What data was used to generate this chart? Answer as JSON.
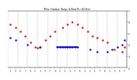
{
  "title": "Milw. Outdoor Temp. & Dew Pt. (24 Hrs)",
  "background_color": "#ffffff",
  "plot_bg_color": "#ffffff",
  "ylim": [
    20,
    70
  ],
  "xlim": [
    0,
    48
  ],
  "ytick_labels": [
    "2",
    "4",
    "6",
    "8"
  ],
  "temp_color": "#dd0000",
  "dewpt_color": "#0000cc",
  "marker_color": "#000000",
  "temp_x": [
    1,
    3,
    5,
    7,
    9,
    11,
    12,
    13,
    15,
    17,
    19,
    22,
    24,
    26,
    28,
    30,
    32,
    34,
    36,
    38,
    40,
    43,
    46,
    47
  ],
  "temp_y": [
    58,
    55,
    52,
    48,
    42,
    38,
    37,
    38,
    44,
    48,
    52,
    55,
    58,
    60,
    58,
    55,
    52,
    48,
    46,
    44,
    42,
    36,
    34,
    38
  ],
  "dew_x": [
    1,
    3,
    8,
    13,
    20,
    21,
    22,
    23,
    24,
    25,
    26,
    27,
    28,
    33,
    36,
    40,
    42,
    44,
    46,
    47
  ],
  "dew_y": [
    46,
    44,
    40,
    38,
    38,
    38,
    38,
    38,
    38,
    38,
    38,
    38,
    38,
    36,
    34,
    34,
    36,
    38,
    40,
    44
  ],
  "vgrid_x": [
    0,
    4,
    8,
    12,
    16,
    20,
    24,
    28,
    32,
    36,
    40,
    44,
    48
  ],
  "xtick_vals": [
    1,
    3,
    5,
    7,
    9,
    11,
    13,
    15,
    17,
    19,
    21,
    23,
    25,
    27,
    29,
    31,
    33,
    35,
    37,
    39,
    41,
    43,
    45,
    47
  ],
  "xtick_labels": [
    "1",
    "3",
    "5",
    "7",
    "9",
    "1",
    "3",
    "5",
    "7",
    "9",
    "1",
    "3",
    "5",
    "7",
    "9",
    "1",
    "3",
    "5",
    "7",
    "9",
    "1",
    "3",
    "5",
    "7"
  ]
}
